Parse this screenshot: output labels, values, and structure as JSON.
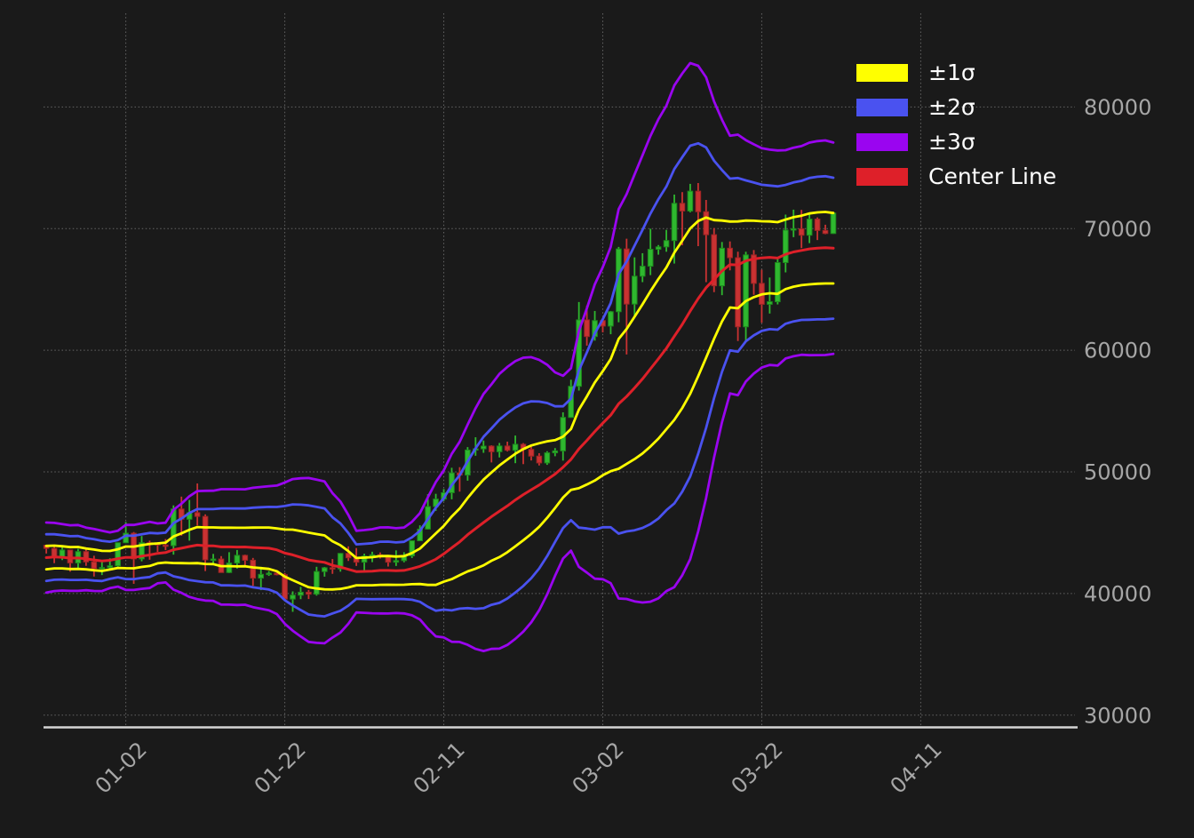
{
  "chart_data": {
    "type": "candlestick",
    "title": "",
    "xlabel": "",
    "ylabel": "",
    "x_tick_labels": [
      "01-02",
      "01-22",
      "02-11",
      "03-02",
      "03-22",
      "04-11"
    ],
    "x_tick_indices": [
      10,
      30,
      50,
      70,
      90,
      110
    ],
    "y_ticks": [
      30000,
      40000,
      50000,
      60000,
      70000,
      80000
    ],
    "ylim": [
      29000,
      87700
    ],
    "xlim_index": [
      -0.35,
      129.4
    ],
    "grid": "dotted both axes",
    "legend_position": "upper right",
    "legend": {
      "items": [
        {
          "label": "±1σ",
          "color": "#ffff00"
        },
        {
          "label": "±2σ",
          "color": "#4a52f0"
        },
        {
          "label": "±3σ",
          "color": "#9a05f0"
        },
        {
          "label": "Center Line",
          "color": "#de2029"
        }
      ]
    },
    "bands": {
      "kind": "bollinger",
      "window": 20,
      "multipliers": [
        1,
        2,
        3
      ],
      "center": "simple moving average of close",
      "pre_closes": [
        41990,
        44080,
        43760,
        43290,
        44170,
        43720,
        43790,
        41240,
        41450,
        42890,
        43020,
        41940,
        42280,
        41370,
        42660,
        42260,
        43670,
        43860,
        43970
      ]
    },
    "ohlc_note": "open, high, low, close per daily candle, values estimated from pixels",
    "ohlc": [
      [
        43970,
        44000,
        43290,
        43710
      ],
      [
        43710,
        43950,
        42500,
        42990
      ],
      [
        42990,
        43800,
        42750,
        43580
      ],
      [
        43580,
        43600,
        41800,
        42520
      ],
      [
        42520,
        43680,
        42100,
        43450
      ],
      [
        43450,
        43800,
        42280,
        42600
      ],
      [
        42600,
        43110,
        41400,
        42070
      ],
      [
        42070,
        42600,
        41520,
        42140
      ],
      [
        42140,
        42900,
        41960,
        42280
      ],
      [
        42280,
        44200,
        42200,
        44180
      ],
      [
        44180,
        45880,
        44150,
        44960
      ],
      [
        44960,
        45060,
        40800,
        42850
      ],
      [
        42850,
        44730,
        42650,
        44180
      ],
      [
        44180,
        44350,
        42780,
        44160
      ],
      [
        44160,
        44220,
        43420,
        43990
      ],
      [
        43990,
        44480,
        43570,
        43940
      ],
      [
        43940,
        47250,
        43200,
        46950
      ],
      [
        46950,
        47970,
        44750,
        46110
      ],
      [
        46110,
        47700,
        44350,
        46650
      ],
      [
        46650,
        49050,
        45600,
        46340
      ],
      [
        46340,
        46510,
        41850,
        42780
      ],
      [
        42780,
        43260,
        42440,
        42840
      ],
      [
        42840,
        43080,
        41720,
        41730
      ],
      [
        41730,
        43400,
        41680,
        42510
      ],
      [
        42510,
        43580,
        42050,
        43140
      ],
      [
        43140,
        43200,
        42200,
        42740
      ],
      [
        42740,
        42930,
        40630,
        41270
      ],
      [
        41270,
        42200,
        40280,
        41580
      ],
      [
        41580,
        41850,
        41450,
        41670
      ],
      [
        41670,
        41880,
        41500,
        41550
      ],
      [
        41550,
        41690,
        39480,
        39550
      ],
      [
        39550,
        40180,
        38500,
        39870
      ],
      [
        39870,
        40550,
        39540,
        40110
      ],
      [
        40110,
        40300,
        39550,
        39950
      ],
      [
        39950,
        42200,
        39830,
        41810
      ],
      [
        41810,
        42190,
        41390,
        42120
      ],
      [
        42120,
        42840,
        41620,
        42030
      ],
      [
        42030,
        43330,
        41800,
        43300
      ],
      [
        43300,
        43880,
        42680,
        42940
      ],
      [
        42940,
        43740,
        42270,
        42580
      ],
      [
        42580,
        43280,
        41880,
        43080
      ],
      [
        43080,
        43440,
        42580,
        43190
      ],
      [
        43190,
        43380,
        42880,
        43010
      ],
      [
        43010,
        43120,
        42220,
        42580
      ],
      [
        42580,
        43550,
        42270,
        42710
      ],
      [
        42710,
        43400,
        42570,
        43100
      ],
      [
        43100,
        44380,
        42920,
        44340
      ],
      [
        44340,
        45610,
        44330,
        45300
      ],
      [
        45300,
        48170,
        45270,
        47150
      ],
      [
        47150,
        48200,
        46800,
        47770
      ],
      [
        47770,
        48590,
        47600,
        48290
      ],
      [
        48290,
        50340,
        47750,
        49920
      ],
      [
        49920,
        50390,
        48380,
        49740
      ],
      [
        49740,
        52040,
        49280,
        51800
      ],
      [
        51800,
        52850,
        51330,
        51900
      ],
      [
        51900,
        52580,
        51570,
        52120
      ],
      [
        52120,
        52190,
        50780,
        51660
      ],
      [
        51660,
        52380,
        51190,
        52130
      ],
      [
        52130,
        52490,
        51680,
        51780
      ],
      [
        51780,
        52990,
        50720,
        52270
      ],
      [
        52270,
        52370,
        50640,
        51850
      ],
      [
        51850,
        52070,
        50940,
        51300
      ],
      [
        51300,
        51540,
        50530,
        50740
      ],
      [
        50740,
        51700,
        50580,
        51570
      ],
      [
        51570,
        51960,
        51290,
        51730
      ],
      [
        51730,
        54900,
        50930,
        54480
      ],
      [
        54480,
        57580,
        54450,
        57040
      ],
      [
        57040,
        63970,
        56690,
        62500
      ],
      [
        62500,
        63670,
        60380,
        61130
      ],
      [
        61130,
        63230,
        60790,
        62440
      ],
      [
        62440,
        62500,
        61470,
        61990
      ],
      [
        61990,
        63230,
        61320,
        63170
      ],
      [
        63170,
        68500,
        62300,
        68330
      ],
      [
        68330,
        69170,
        59660,
        63800
      ],
      [
        63800,
        67640,
        62780,
        66090
      ],
      [
        66090,
        67980,
        65600,
        66910
      ],
      [
        66910,
        69990,
        66180,
        68300
      ],
      [
        68300,
        68650,
        67860,
        68500
      ],
      [
        68500,
        69900,
        68100,
        69020
      ],
      [
        69020,
        72800,
        67130,
        72080
      ],
      [
        72080,
        73000,
        68630,
        71450
      ],
      [
        71450,
        73680,
        71340,
        73080
      ],
      [
        73080,
        73750,
        68560,
        71390
      ],
      [
        71390,
        72360,
        65600,
        69500
      ],
      [
        69500,
        70050,
        64780,
        65300
      ],
      [
        65300,
        68900,
        64530,
        68390
      ],
      [
        68390,
        68950,
        66570,
        67610
      ],
      [
        67610,
        68100,
        60760,
        61930
      ],
      [
        61930,
        68100,
        60780,
        67840
      ],
      [
        67840,
        68240,
        64560,
        65500
      ],
      [
        65500,
        66620,
        62260,
        63780
      ],
      [
        63780,
        65980,
        63020,
        63990
      ],
      [
        63990,
        67620,
        63770,
        67210
      ],
      [
        67210,
        71150,
        66400,
        69880
      ],
      [
        69880,
        71560,
        69300,
        69990
      ],
      [
        69990,
        71540,
        68400,
        69460
      ],
      [
        69460,
        71280,
        68810,
        70780
      ],
      [
        70780,
        70920,
        69060,
        69850
      ],
      [
        69850,
        70320,
        69540,
        69600
      ],
      [
        69600,
        71380,
        69570,
        71280
      ]
    ],
    "style": {
      "background": "#1a1a1a",
      "grid_color": "#8c8c8c",
      "axis_line_color": "#d4d4d4",
      "tick_label_color": "#a6a6a6",
      "legend_text_color": "#ffffff",
      "candle_up_color": "#2fb82f",
      "candle_up_edge": "#1d8a1d",
      "candle_down_color": "#c93232",
      "candle_down_edge": "#9e2525",
      "band1_color": "#ffff00",
      "band2_color": "#4a52f0",
      "band3_color": "#9a05f0",
      "center_color": "#de2029"
    }
  }
}
